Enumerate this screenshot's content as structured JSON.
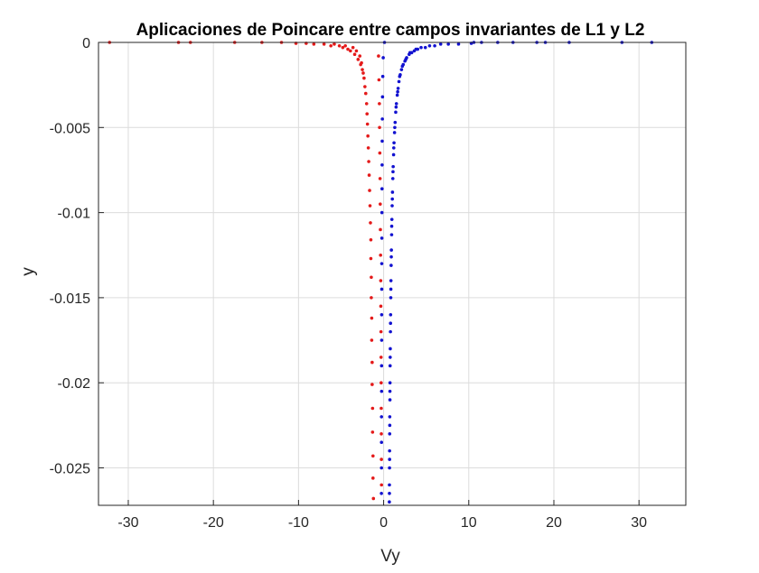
{
  "chart_data": {
    "type": "scatter",
    "title": "Aplicaciones de Poincare entre campos invariantes de L1 y L2",
    "xlabel": "Vy",
    "ylabel": "y",
    "xlim": [
      -33.5,
      35.5
    ],
    "ylim": [
      -0.0272,
      0
    ],
    "xticks": [
      -30,
      -20,
      -10,
      0,
      10,
      20,
      30
    ],
    "xtick_labels": [
      "-30",
      "-20",
      "-10",
      "0",
      "10",
      "20",
      "30"
    ],
    "yticks": [
      0,
      -0.005,
      -0.01,
      -0.015,
      -0.02,
      -0.025
    ],
    "ytick_labels": [
      "0",
      "-0.005",
      "-0.01",
      "-0.015",
      "-0.02",
      "-0.025"
    ],
    "grid": true,
    "series": [
      {
        "color": "#e41a1a",
        "points": [
          [
            -32.2,
            0
          ],
          [
            -24.1,
            0
          ],
          [
            -22.7,
            0
          ],
          [
            -17.5,
            0
          ],
          [
            -14.3,
            0
          ],
          [
            -12.0,
            0
          ],
          [
            -10.3,
            -5e-05
          ],
          [
            -9.1,
            -5e-05
          ],
          [
            -5.8,
            -0.0001
          ],
          [
            -4.5,
            -0.0002
          ],
          [
            -3.6,
            -0.0003
          ],
          [
            -3.2,
            -0.0005
          ],
          [
            -2.8,
            -0.0008
          ],
          [
            -2.6,
            -0.0012
          ],
          [
            -2.4,
            -0.0018
          ],
          [
            -2.2,
            -0.0026
          ],
          [
            -2.0,
            -0.0036
          ],
          [
            -1.9,
            -0.0048
          ],
          [
            -1.8,
            -0.0062
          ],
          [
            -1.7,
            -0.0078
          ],
          [
            -1.6,
            -0.0096
          ],
          [
            -1.5,
            -0.0116
          ],
          [
            -1.45,
            -0.0138
          ],
          [
            -1.4,
            -0.0162
          ],
          [
            -1.35,
            -0.0188
          ],
          [
            -1.3,
            -0.0215
          ],
          [
            -1.25,
            -0.0243
          ],
          [
            -1.2,
            -0.0268
          ],
          [
            -8.2,
            -0.0001
          ],
          [
            -7.0,
            -0.0001
          ],
          [
            -6.2,
            -0.0002
          ],
          [
            -5.2,
            -0.0002
          ],
          [
            -4.8,
            -0.0003
          ],
          [
            -4.2,
            -0.0004
          ],
          [
            -3.9,
            -0.0005
          ],
          [
            -3.4,
            -0.0007
          ],
          [
            -3.0,
            -0.001
          ],
          [
            -2.7,
            -0.0013
          ],
          [
            -2.5,
            -0.0016
          ],
          [
            -2.3,
            -0.0021
          ],
          [
            -2.1,
            -0.003
          ],
          [
            -1.95,
            -0.0042
          ],
          [
            -1.85,
            -0.0055
          ],
          [
            -1.75,
            -0.007
          ],
          [
            -1.65,
            -0.0087
          ],
          [
            -1.55,
            -0.0106
          ],
          [
            -1.5,
            -0.0127
          ],
          [
            -1.45,
            -0.015
          ],
          [
            -1.4,
            -0.0175
          ],
          [
            -1.35,
            -0.0201
          ],
          [
            -1.3,
            -0.0229
          ],
          [
            -1.25,
            -0.0256
          ],
          [
            -0.6,
            -0.0008
          ],
          [
            -0.55,
            -0.0022
          ],
          [
            -0.5,
            -0.0036
          ],
          [
            -0.48,
            -0.005
          ],
          [
            -0.45,
            -0.0065
          ],
          [
            -0.42,
            -0.008
          ],
          [
            -0.4,
            -0.0095
          ],
          [
            -0.38,
            -0.011
          ],
          [
            -0.36,
            -0.0125
          ],
          [
            -0.34,
            -0.014
          ],
          [
            -0.33,
            -0.0155
          ],
          [
            -0.31,
            -0.017
          ],
          [
            -0.3,
            -0.0185
          ],
          [
            -0.29,
            -0.02
          ],
          [
            -0.28,
            -0.0215
          ],
          [
            -0.27,
            -0.023
          ],
          [
            -0.26,
            -0.0245
          ],
          [
            -0.25,
            -0.026
          ]
        ]
      },
      {
        "color": "#1212d0",
        "points": [
          [
            31.5,
            0
          ],
          [
            28.0,
            0
          ],
          [
            21.8,
            0
          ],
          [
            19.0,
            0
          ],
          [
            18.0,
            0
          ],
          [
            15.2,
            0
          ],
          [
            13.4,
            0
          ],
          [
            11.5,
            0
          ],
          [
            10.6,
            0
          ],
          [
            10.3,
            -5e-05
          ],
          [
            8.8,
            -0.0001
          ],
          [
            7.6,
            -0.0001
          ],
          [
            6.7,
            -0.0001
          ],
          [
            6.0,
            -0.0002
          ],
          [
            5.4,
            -0.0002
          ],
          [
            4.9,
            -0.0003
          ],
          [
            4.4,
            -0.0003
          ],
          [
            4.0,
            -0.0004
          ],
          [
            3.6,
            -0.0005
          ],
          [
            3.3,
            -0.0006
          ],
          [
            3.0,
            -0.0007
          ],
          [
            2.7,
            -0.0009
          ],
          [
            2.5,
            -0.0011
          ],
          [
            2.3,
            -0.0013
          ],
          [
            2.1,
            -0.0016
          ],
          [
            1.95,
            -0.0019
          ],
          [
            1.8,
            -0.0023
          ],
          [
            1.7,
            -0.0027
          ],
          [
            1.6,
            -0.0031
          ],
          [
            1.5,
            -0.0036
          ],
          [
            1.42,
            -0.0041
          ],
          [
            1.35,
            -0.0047
          ],
          [
            1.28,
            -0.0053
          ],
          [
            1.22,
            -0.0059
          ],
          [
            1.17,
            -0.0066
          ],
          [
            1.12,
            -0.0073
          ],
          [
            1.08,
            -0.008
          ],
          [
            1.04,
            -0.0088
          ],
          [
            1.0,
            -0.0096
          ],
          [
            0.97,
            -0.0104
          ],
          [
            0.94,
            -0.0113
          ],
          [
            0.91,
            -0.0122
          ],
          [
            0.88,
            -0.0131
          ],
          [
            0.86,
            -0.014
          ],
          [
            0.84,
            -0.015
          ],
          [
            0.82,
            -0.016
          ],
          [
            0.8,
            -0.017
          ],
          [
            0.78,
            -0.018
          ],
          [
            0.76,
            -0.019
          ],
          [
            0.75,
            -0.02
          ],
          [
            0.74,
            -0.021
          ],
          [
            0.72,
            -0.022
          ],
          [
            0.71,
            -0.023
          ],
          [
            0.7,
            -0.024
          ],
          [
            0.69,
            -0.025
          ],
          [
            0.68,
            -0.026
          ],
          [
            0.67,
            -0.027
          ],
          [
            3.8,
            -0.0004
          ],
          [
            3.1,
            -0.0006
          ],
          [
            2.6,
            -0.001
          ],
          [
            2.2,
            -0.0014
          ],
          [
            1.88,
            -0.002
          ],
          [
            1.65,
            -0.0029
          ],
          [
            1.46,
            -0.0038
          ],
          [
            1.31,
            -0.005
          ],
          [
            1.19,
            -0.0062
          ],
          [
            1.1,
            -0.0076
          ],
          [
            1.02,
            -0.0092
          ],
          [
            0.95,
            -0.0108
          ],
          [
            0.9,
            -0.0126
          ],
          [
            0.85,
            -0.0145
          ],
          [
            0.81,
            -0.0165
          ],
          [
            0.77,
            -0.0185
          ],
          [
            0.74,
            -0.0205
          ],
          [
            0.72,
            -0.0225
          ],
          [
            0.7,
            -0.0245
          ],
          [
            0.68,
            -0.0265
          ],
          [
            0.1,
            0
          ],
          [
            -0.05,
            -0.0009
          ],
          [
            -0.1,
            -0.002
          ],
          [
            -0.13,
            -0.0032
          ],
          [
            -0.15,
            -0.0045
          ],
          [
            -0.17,
            -0.0058
          ],
          [
            -0.18,
            -0.0072
          ],
          [
            -0.19,
            -0.0086
          ],
          [
            -0.2,
            -0.01
          ],
          [
            -0.21,
            -0.0115
          ],
          [
            -0.22,
            -0.013
          ],
          [
            -0.22,
            -0.0145
          ],
          [
            -0.23,
            -0.016
          ],
          [
            -0.23,
            -0.0175
          ],
          [
            -0.24,
            -0.019
          ],
          [
            -0.24,
            -0.0205
          ],
          [
            -0.25,
            -0.022
          ],
          [
            -0.25,
            -0.0235
          ],
          [
            -0.25,
            -0.025
          ],
          [
            -0.26,
            -0.0265
          ]
        ]
      }
    ]
  }
}
